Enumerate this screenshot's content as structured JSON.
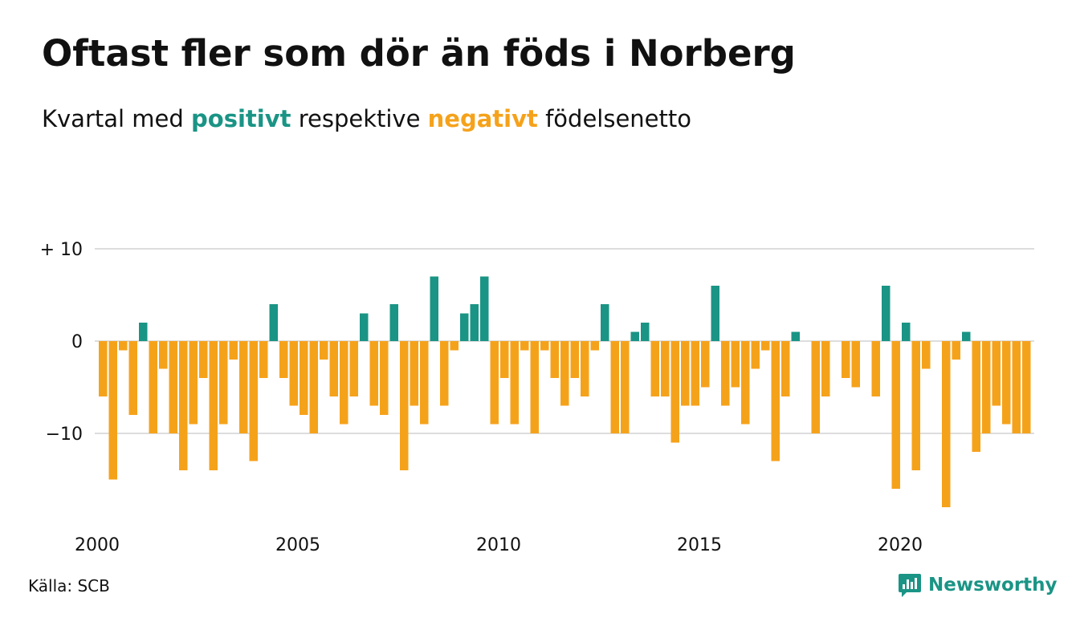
{
  "header": {
    "title": "Oftast fler som dör än föds i Norberg",
    "subtitle_prefix": "Kvartal med",
    "subtitle_positive": "positivt",
    "subtitle_middle": "respektive",
    "subtitle_negative": "negativt",
    "subtitle_suffix": "födelsenetto"
  },
  "footer": {
    "source": "Källa: SCB",
    "brand": "Newsworthy"
  },
  "colors": {
    "positive": "#1a9485",
    "negative": "#f5a21b",
    "grid": "#dddddd",
    "text": "#111111"
  },
  "chart_data": {
    "type": "bar",
    "ylim": [
      -18,
      10
    ],
    "y_ticks": [
      {
        "value": 10,
        "label": "+ 10"
      },
      {
        "value": 0,
        "label": "0"
      },
      {
        "value": -10,
        "label": "−10"
      }
    ],
    "x_ticks": [
      "2000",
      "2005",
      "2010",
      "2015",
      "2020"
    ],
    "start_year": 2000,
    "quarters_per_year": 4,
    "grid": true,
    "values": [
      -6,
      -15,
      -1,
      -8,
      2,
      -10,
      -3,
      -10,
      -14,
      -9,
      -4,
      -14,
      -9,
      -2,
      -10,
      -13,
      -4,
      4,
      -4,
      -7,
      -8,
      -10,
      -2,
      -6,
      -9,
      -6,
      3,
      -7,
      -8,
      4,
      -14,
      -7,
      -9,
      7,
      -7,
      -1,
      3,
      4,
      7,
      -9,
      -4,
      -9,
      -1,
      -10,
      -1,
      -4,
      -7,
      -4,
      -6,
      -1,
      4,
      -10,
      -10,
      1,
      2,
      -6,
      -6,
      -11,
      -7,
      -7,
      -5,
      6,
      -7,
      -5,
      -9,
      -3,
      -1,
      -13,
      -6,
      1,
      0,
      -10,
      -6,
      0,
      -4,
      -5,
      0,
      -6,
      6,
      -16,
      2,
      -14,
      -3,
      0,
      -18,
      -2,
      1,
      -12,
      -10,
      -7,
      -9,
      -10,
      -10
    ]
  }
}
